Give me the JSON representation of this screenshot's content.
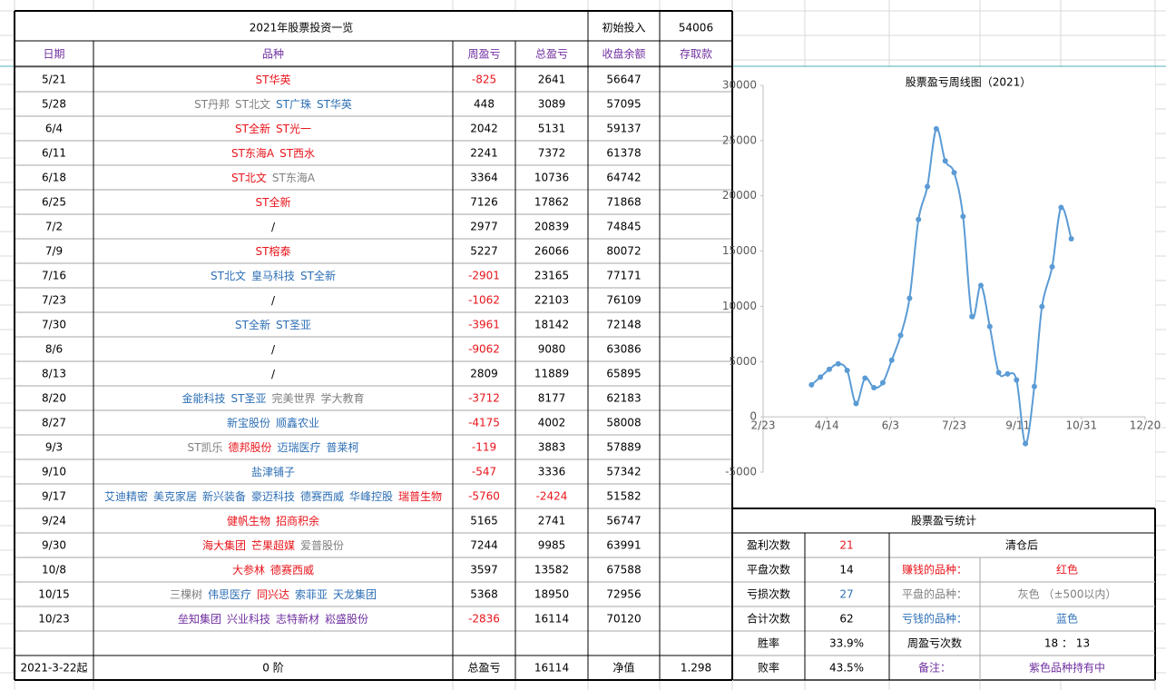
{
  "sheet": {
    "title": "2021年股票投资一览",
    "initial_label": "初始投入",
    "initial_value": 54006,
    "headers": [
      "日期",
      "品种",
      "周盈亏",
      "总盈亏",
      "收盘余额",
      "存取款"
    ],
    "rows": [
      {
        "date": "5/21",
        "stocks": [
          {
            "name": "ST华英",
            "color": "#e8141b"
          }
        ],
        "weekly": -825,
        "total": 2641,
        "balance": 56647
      },
      {
        "date": "5/28",
        "stocks": [
          {
            "name": "ST丹邦",
            "color": "#7f7f7f"
          },
          {
            "name": "ST北文",
            "color": "#7f7f7f"
          },
          {
            "name": "ST广珠",
            "color": "#2e6fb5"
          },
          {
            "name": "ST华英",
            "color": "#2e6fb5"
          }
        ],
        "weekly": 448,
        "total": 3089,
        "balance": 57095
      },
      {
        "date": "6/4",
        "stocks": [
          {
            "name": "ST全新",
            "color": "#e8141b"
          },
          {
            "name": "ST光一",
            "color": "#e8141b"
          }
        ],
        "weekly": 2042,
        "total": 5131,
        "balance": 59137
      },
      {
        "date": "6/11",
        "stocks": [
          {
            "name": "ST东海A",
            "color": "#e8141b"
          },
          {
            "name": "ST西水",
            "color": "#e8141b"
          }
        ],
        "weekly": 2241,
        "total": 7372,
        "balance": 61378
      },
      {
        "date": "6/18",
        "stocks": [
          {
            "name": "ST北文",
            "color": "#e8141b"
          },
          {
            "name": "ST东海A",
            "color": "#7f7f7f"
          }
        ],
        "weekly": 3364,
        "total": 10736,
        "balance": 64742
      },
      {
        "date": "6/25",
        "stocks": [
          {
            "name": "ST全新",
            "color": "#e8141b"
          }
        ],
        "weekly": 7126,
        "total": 17862,
        "balance": 71868
      },
      {
        "date": "7/2",
        "stocks": [
          {
            "name": "/",
            "color": "#000000"
          }
        ],
        "weekly": 2977,
        "total": 20839,
        "balance": 74845
      },
      {
        "date": "7/9",
        "stocks": [
          {
            "name": "ST榕泰",
            "color": "#e8141b"
          }
        ],
        "weekly": 5227,
        "total": 26066,
        "balance": 80072
      },
      {
        "date": "7/16",
        "stocks": [
          {
            "name": "ST北文",
            "color": "#2e6fb5"
          },
          {
            "name": "皇马科技",
            "color": "#2e6fb5"
          },
          {
            "name": "ST全新",
            "color": "#2e6fb5"
          }
        ],
        "weekly": -2901,
        "total": 23165,
        "balance": 77171
      },
      {
        "date": "7/23",
        "stocks": [
          {
            "name": "/",
            "color": "#000000"
          }
        ],
        "weekly": -1062,
        "total": 22103,
        "balance": 76109
      },
      {
        "date": "7/30",
        "stocks": [
          {
            "name": "ST全新",
            "color": "#2e6fb5"
          },
          {
            "name": "ST圣亚",
            "color": "#2e6fb5"
          }
        ],
        "weekly": -3961,
        "total": 18142,
        "balance": 72148
      },
      {
        "date": "8/6",
        "stocks": [
          {
            "name": "/",
            "color": "#000000"
          }
        ],
        "weekly": -9062,
        "total": 9080,
        "balance": 63086
      },
      {
        "date": "8/13",
        "stocks": [
          {
            "name": "/",
            "color": "#000000"
          }
        ],
        "weekly": 2809,
        "total": 11889,
        "balance": 65895
      },
      {
        "date": "8/20",
        "stocks": [
          {
            "name": "金能科技",
            "color": "#2e6fb5"
          },
          {
            "name": "ST圣亚",
            "color": "#2e6fb5"
          },
          {
            "name": "完美世界",
            "color": "#7f7f7f"
          },
          {
            "name": "学大教育",
            "color": "#7f7f7f"
          }
        ],
        "weekly": -3712,
        "total": 8177,
        "balance": 62183
      },
      {
        "date": "8/27",
        "stocks": [
          {
            "name": "新宝股份",
            "color": "#2e6fb5"
          },
          {
            "name": "顺鑫农业",
            "color": "#2e6fb5"
          }
        ],
        "weekly": -4175,
        "total": 4002,
        "balance": 58008
      },
      {
        "date": "9/3",
        "stocks": [
          {
            "name": "ST凯乐",
            "color": "#7f7f7f"
          },
          {
            "name": "德邦股份",
            "color": "#e8141b"
          },
          {
            "name": "迈瑞医疗",
            "color": "#2e6fb5"
          },
          {
            "name": "普莱柯",
            "color": "#2e6fb5"
          }
        ],
        "weekly": -119,
        "total": 3883,
        "balance": 57889
      },
      {
        "date": "9/10",
        "stocks": [
          {
            "name": "盐津铺子",
            "color": "#2e6fb5"
          }
        ],
        "weekly": -547,
        "total": 3336,
        "balance": 57342
      },
      {
        "date": "9/17",
        "stocks": [
          {
            "name": "艾迪精密",
            "color": "#2e6fb5"
          },
          {
            "name": "美克家居",
            "color": "#2e6fb5"
          },
          {
            "name": "新兴装备",
            "color": "#2e6fb5"
          },
          {
            "name": "豪迈科技",
            "color": "#2e6fb5"
          },
          {
            "name": "德赛西威",
            "color": "#2e6fb5"
          },
          {
            "name": "华峰控股",
            "color": "#2e6fb5"
          },
          {
            "name": "瑞普生物",
            "color": "#e8141b"
          }
        ],
        "weekly": -5760,
        "total": -2424,
        "balance": 51582
      },
      {
        "date": "9/24",
        "stocks": [
          {
            "name": "健帆生物",
            "color": "#e8141b"
          },
          {
            "name": "招商积余",
            "color": "#e8141b"
          }
        ],
        "weekly": 5165,
        "total": 2741,
        "balance": 56747
      },
      {
        "date": "9/30",
        "stocks": [
          {
            "name": "海大集团",
            "color": "#e8141b"
          },
          {
            "name": "芒果超媒",
            "color": "#e8141b"
          },
          {
            "name": "爱普股份",
            "color": "#7f7f7f"
          }
        ],
        "weekly": 7244,
        "total": 9985,
        "balance": 63991
      },
      {
        "date": "10/8",
        "stocks": [
          {
            "name": "大参林",
            "color": "#e8141b"
          },
          {
            "name": "德赛西威",
            "color": "#e8141b"
          }
        ],
        "weekly": 3597,
        "total": 13582,
        "balance": 67588
      },
      {
        "date": "10/15",
        "stocks": [
          {
            "name": "三棵树",
            "color": "#7f7f7f"
          },
          {
            "name": "伟思医疗",
            "color": "#2e6fb5"
          },
          {
            "name": "同兴达",
            "color": "#e8141b"
          },
          {
            "name": "索菲亚",
            "color": "#2e6fb5"
          },
          {
            "name": "天龙集团",
            "color": "#2e6fb5"
          }
        ],
        "weekly": 5368,
        "total": 18950,
        "balance": 72956
      },
      {
        "date": "10/23",
        "stocks": [
          {
            "name": "垒知集团",
            "color": "#7030a0"
          },
          {
            "name": "兴业科技",
            "color": "#7030a0"
          },
          {
            "name": "志特新材",
            "color": "#7030a0"
          },
          {
            "name": "崧盛股份",
            "color": "#7030a0"
          }
        ],
        "weekly": -2836,
        "total": 16114,
        "balance": 70120
      }
    ],
    "footer": {
      "start": "2021-3-22起",
      "level": "0 阶",
      "total_label": "总盈亏",
      "total": 16114,
      "nav_label": "净值",
      "nav": 1.298
    },
    "stats": {
      "title": "股票盈亏统计",
      "left": [
        {
          "label": "盈利次数",
          "value": 21,
          "color": "#e8141b"
        },
        {
          "label": "平盘次数",
          "value": 14,
          "color": "#000000"
        },
        {
          "label": "亏损次数",
          "value": 27,
          "color": "#2e6fb5"
        },
        {
          "label": "合计次数",
          "value": 62,
          "color": "#000000"
        },
        {
          "label": "胜率",
          "value": "33.9%",
          "color": "#000000"
        },
        {
          "label": "败率",
          "value": "43.5%",
          "color": "#000000"
        }
      ],
      "heading": "清仓后",
      "right": [
        {
          "label": "赚钱的品种：",
          "value": "红色",
          "color": "#e8141b"
        },
        {
          "label": "平盘的品种：",
          "value": "灰色 （±500以内）",
          "color": "#7f7f7f"
        },
        {
          "label": "亏钱的品种：",
          "value": "蓝色",
          "color": "#2e6fb5"
        },
        {
          "label": "周盈亏次数",
          "value": "18 ： 13",
          "color": "#000000"
        },
        {
          "label": "备注：",
          "value": "紫色品种持有中",
          "color": "#7030a0"
        }
      ]
    }
  },
  "chart_data": {
    "type": "line",
    "title": "股票盈亏周线图（2021）",
    "color": "#5b9bd5",
    "x": [
      "4/2",
      "4/9",
      "4/16",
      "4/23",
      "4/30",
      "5/7",
      "5/14",
      "5/21",
      "5/28",
      "6/4",
      "6/11",
      "6/18",
      "6/25",
      "7/2",
      "7/9",
      "7/16",
      "7/23",
      "7/30",
      "8/6",
      "8/13",
      "8/20",
      "8/27",
      "9/3",
      "9/10",
      "9/17",
      "9/24",
      "9/30",
      "10/8",
      "10/15",
      "10/23"
    ],
    "values": [
      2900,
      3600,
      4300,
      4800,
      4200,
      1200,
      3500,
      2641,
      3089,
      5131,
      7372,
      10736,
      17862,
      20839,
      26066,
      23165,
      22103,
      18142,
      9080,
      11889,
      8177,
      4002,
      3883,
      3336,
      -2424,
      2741,
      9985,
      13582,
      18950,
      16114
    ],
    "xlim": [
      "2/23",
      "12/20"
    ],
    "xticks": [
      "2/23",
      "4/14",
      "6/3",
      "7/23",
      "9/11",
      "10/31",
      "12/20"
    ],
    "ylim": [
      -5000,
      30000
    ],
    "yticks": [
      -5000,
      0,
      5000,
      10000,
      15000,
      20000,
      25000,
      30000
    ]
  }
}
